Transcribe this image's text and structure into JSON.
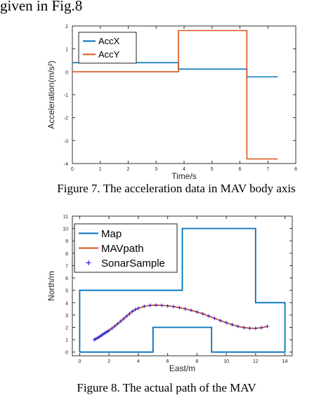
{
  "header_text": "given in Fig.8",
  "figures": [
    {
      "caption": "Figure 7. The acceleration data in MAV body axis"
    },
    {
      "caption": "Figure 8. The actual path of the MAV"
    }
  ],
  "colors": {
    "blue": "#0072BD",
    "orange": "#D95319",
    "marker": "#2222DD"
  },
  "chart_data": [
    {
      "type": "line",
      "xlabel": "Time/s",
      "ylabel": "Acceleration(m/s²)",
      "xlim": [
        0,
        8
      ],
      "ylim": [
        -4,
        2
      ],
      "xticks": [
        "0",
        "1",
        "2",
        "3",
        "4",
        "5",
        "6",
        "7",
        "8"
      ],
      "yticks": [
        "2",
        "1",
        "0",
        "-1",
        "-2",
        "-3",
        "-4"
      ],
      "legend_position": "top-left",
      "series": [
        {
          "name": "AccX",
          "color": "#0072BD",
          "x": [
            0,
            3.8,
            3.8,
            6.25,
            6.25,
            7.35
          ],
          "y": [
            0.4,
            0.4,
            0.12,
            0.12,
            -0.22,
            -0.22
          ]
        },
        {
          "name": "AccY",
          "color": "#D95319",
          "x": [
            0,
            3.8,
            3.8,
            6.25,
            6.25,
            7.35
          ],
          "y": [
            0,
            0,
            1.8,
            1.8,
            -3.8,
            -3.8
          ]
        }
      ]
    },
    {
      "type": "line",
      "xlabel": "East/m",
      "ylabel": "North/m",
      "xlim": [
        -0.5,
        14.5
      ],
      "ylim": [
        -0.3,
        11
      ],
      "xticks": [
        "0",
        "2",
        "4",
        "6",
        "8",
        "10",
        "12",
        "14"
      ],
      "yticks": [
        "11",
        "10",
        "9",
        "8",
        "7",
        "6",
        "5",
        "4",
        "3",
        "2",
        "1",
        "0"
      ],
      "legend_position": "top-left",
      "series": [
        {
          "name": "Map",
          "color": "#0072BD",
          "x": [
            0,
            0,
            7,
            7,
            12,
            12,
            14,
            14,
            9,
            9,
            5,
            5,
            0
          ],
          "y": [
            0,
            5,
            5,
            10,
            10,
            4,
            4,
            0,
            0,
            2,
            2,
            0,
            0
          ]
        },
        {
          "name": "MAVpath",
          "color": "#D95319",
          "x": [
            1,
            1.3,
            1.6,
            2,
            2.4,
            2.8,
            3.2,
            3.6,
            4,
            4.4,
            4.8,
            5.2,
            5.6,
            6,
            6.4,
            6.8,
            7.2,
            7.6,
            8,
            8.4,
            8.8,
            9.2,
            9.6,
            10,
            10.4,
            10.8,
            11.2,
            11.6,
            12,
            12.4,
            12.8
          ],
          "y": [
            1,
            1.2,
            1.45,
            1.75,
            2.1,
            2.5,
            2.9,
            3.3,
            3.55,
            3.7,
            3.78,
            3.8,
            3.78,
            3.74,
            3.68,
            3.6,
            3.5,
            3.38,
            3.25,
            3.1,
            2.92,
            2.73,
            2.55,
            2.38,
            2.22,
            2.08,
            1.98,
            1.93,
            1.92,
            1.97,
            2.08
          ]
        },
        {
          "name": "SonarSample",
          "color": "#2222DD",
          "marker": "+",
          "x": [
            1,
            1.1,
            1.2,
            1.3,
            1.4,
            1.5,
            1.6,
            1.7,
            1.8,
            1.9,
            2,
            2.2,
            2.4,
            2.6,
            2.8,
            3,
            3.2,
            3.4,
            3.6,
            3.8,
            4,
            4.4,
            4.8,
            5.2,
            5.6,
            6,
            6.4,
            6.8,
            7.2,
            7.6,
            8,
            8.4,
            8.8,
            9.2,
            9.6,
            10,
            10.4,
            10.8,
            11.2,
            11.6,
            12,
            12.4,
            12.8
          ],
          "y": [
            1,
            1.07,
            1.13,
            1.2,
            1.28,
            1.36,
            1.45,
            1.53,
            1.6,
            1.67,
            1.75,
            1.92,
            2.1,
            2.3,
            2.5,
            2.7,
            2.9,
            3.1,
            3.3,
            3.45,
            3.55,
            3.7,
            3.78,
            3.8,
            3.78,
            3.74,
            3.68,
            3.6,
            3.5,
            3.38,
            3.25,
            3.1,
            2.92,
            2.73,
            2.55,
            2.38,
            2.22,
            2.08,
            1.98,
            1.93,
            1.92,
            1.97,
            2.08
          ]
        }
      ]
    }
  ]
}
